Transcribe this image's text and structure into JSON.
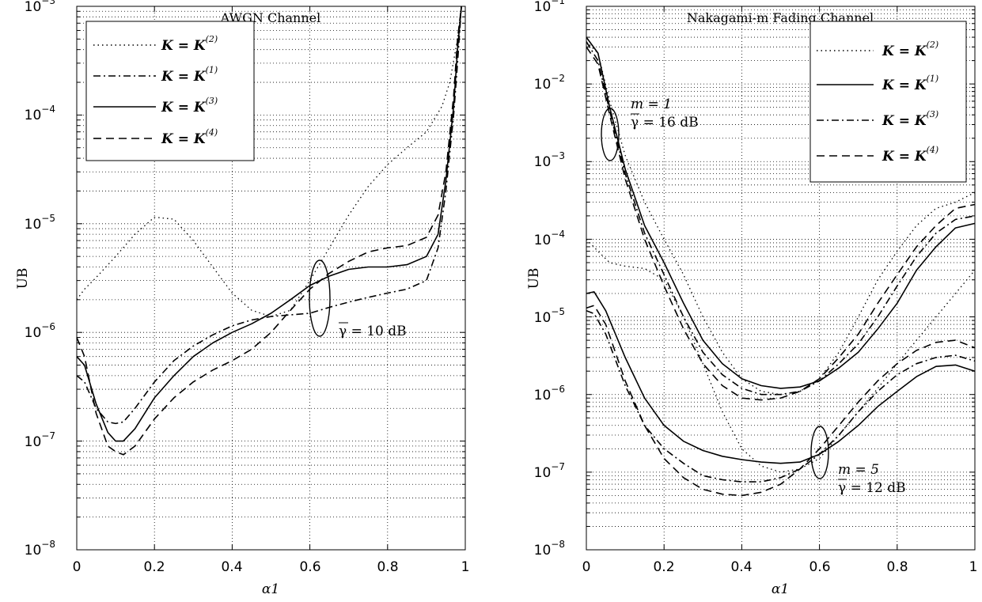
{
  "chart_data": [
    {
      "type": "line",
      "title": "AWGN Channel",
      "xlabel": "α1",
      "ylabel": "UB",
      "xlim": [
        0,
        1
      ],
      "ylim": [
        1e-08,
        0.001
      ],
      "yscale": "log",
      "grid": true,
      "legend_position": "top-left",
      "x_ticks": [
        "0",
        "0.2",
        "0.4",
        "0.6",
        "0.8",
        "1"
      ],
      "y_ticks": [
        {
          "base": "10",
          "exp": "−8"
        },
        {
          "base": "10",
          "exp": "−7"
        },
        {
          "base": "10",
          "exp": "−6"
        },
        {
          "base": "10",
          "exp": "−5"
        },
        {
          "base": "10",
          "exp": "−4"
        },
        {
          "base": "10",
          "exp": "−3"
        }
      ],
      "legend": [
        {
          "label": "K = K",
          "sup": "(2)",
          "style": "dotted"
        },
        {
          "label": "K = K",
          "sup": "(1)",
          "style": "dashdot"
        },
        {
          "label": "K = K",
          "sup": "(3)",
          "style": "solid"
        },
        {
          "label": "K = K",
          "sup": "(4)",
          "style": "dashed"
        }
      ],
      "annotations": [
        "γ = 10 dB"
      ],
      "series": [
        {
          "style": "dotted",
          "x": [
            0.0,
            0.02,
            0.05,
            0.1,
            0.15,
            0.2,
            0.25,
            0.3,
            0.35,
            0.4,
            0.45,
            0.5,
            0.55,
            0.6,
            0.65,
            0.7,
            0.75,
            0.8,
            0.85,
            0.9,
            0.94,
            0.96,
            0.98,
            0.99
          ],
          "y": [
            2e-06,
            2.5e-06,
            3.2e-06,
            5e-06,
            8e-06,
            1.15e-05,
            1.1e-05,
            7e-06,
            4e-06,
            2.3e-06,
            1.6e-06,
            1.4e-06,
            1.6e-06,
            3e-06,
            6e-06,
            1.2e-05,
            2.2e-05,
            3.5e-05,
            5e-05,
            7e-05,
            0.00012,
            0.0002,
            0.0005,
            0.001
          ]
        },
        {
          "style": "dashdot",
          "x": [
            0.0,
            0.02,
            0.05,
            0.08,
            0.1,
            0.12,
            0.15,
            0.2,
            0.25,
            0.3,
            0.35,
            0.4,
            0.45,
            0.5,
            0.55,
            0.6,
            0.65,
            0.7,
            0.75,
            0.8,
            0.85,
            0.9,
            0.93,
            0.95,
            0.97,
            0.98,
            0.99
          ],
          "y": [
            4e-07,
            3.5e-07,
            2e-07,
            1.5e-07,
            1.45e-07,
            1.5e-07,
            2e-07,
            3.5e-07,
            5.5e-07,
            7.5e-07,
            9.5e-07,
            1.15e-06,
            1.3e-06,
            1.4e-06,
            1.45e-06,
            1.5e-06,
            1.7e-06,
            1.9e-06,
            2.1e-06,
            2.3e-06,
            2.5e-06,
            3e-06,
            6e-06,
            2e-05,
            0.0001,
            0.0003,
            0.001
          ]
        },
        {
          "style": "solid",
          "x": [
            0.0,
            0.02,
            0.05,
            0.08,
            0.1,
            0.12,
            0.15,
            0.2,
            0.25,
            0.3,
            0.35,
            0.4,
            0.45,
            0.5,
            0.55,
            0.6,
            0.65,
            0.7,
            0.75,
            0.8,
            0.85,
            0.9,
            0.93,
            0.95,
            0.97,
            0.98,
            0.99
          ],
          "y": [
            6e-07,
            5e-07,
            2.2e-07,
            1.2e-07,
            1e-07,
            1e-07,
            1.3e-07,
            2.5e-07,
            4e-07,
            6e-07,
            8e-07,
            1e-06,
            1.2e-06,
            1.5e-06,
            2e-06,
            2.7e-06,
            3.3e-06,
            3.8e-06,
            4e-06,
            4e-06,
            4.2e-06,
            5e-06,
            8e-06,
            2.5e-05,
            0.00012,
            0.0004,
            0.001
          ]
        },
        {
          "style": "dashed",
          "x": [
            0.0,
            0.02,
            0.05,
            0.08,
            0.1,
            0.12,
            0.15,
            0.2,
            0.25,
            0.3,
            0.35,
            0.4,
            0.45,
            0.5,
            0.55,
            0.6,
            0.65,
            0.7,
            0.75,
            0.8,
            0.85,
            0.9,
            0.93,
            0.95,
            0.97,
            0.98,
            0.99
          ],
          "y": [
            9e-07,
            6e-07,
            1.8e-07,
            9e-08,
            8e-08,
            7.5e-08,
            9e-08,
            1.6e-07,
            2.5e-07,
            3.5e-07,
            4.5e-07,
            5.5e-07,
            7e-07,
            1e-06,
            1.6e-06,
            2.5e-06,
            3.5e-06,
            4.5e-06,
            5.5e-06,
            6e-06,
            6.3e-06,
            7.5e-06,
            1.2e-05,
            3e-05,
            0.00015,
            0.0005,
            0.001
          ]
        }
      ]
    },
    {
      "type": "line",
      "title": "Nakagami-m Fading Channel",
      "xlabel": "α1",
      "ylabel": "UB",
      "xlim": [
        0,
        1
      ],
      "ylim": [
        1e-08,
        0.1
      ],
      "yscale": "log",
      "grid": true,
      "legend_position": "top-right",
      "x_ticks": [
        "0",
        "0.2",
        "0.4",
        "0.6",
        "0.8",
        "1"
      ],
      "y_ticks": [
        {
          "base": "10",
          "exp": "−8"
        },
        {
          "base": "10",
          "exp": "−7"
        },
        {
          "base": "10",
          "exp": "−6"
        },
        {
          "base": "10",
          "exp": "−5"
        },
        {
          "base": "10",
          "exp": "−4"
        },
        {
          "base": "10",
          "exp": "−3"
        },
        {
          "base": "10",
          "exp": "−2"
        },
        {
          "base": "10",
          "exp": "−1"
        }
      ],
      "legend": [
        {
          "label": "K = K",
          "sup": "(2)",
          "style": "dotted"
        },
        {
          "label": "K = K",
          "sup": "(1)",
          "style": "solid"
        },
        {
          "label": "K = K",
          "sup": "(3)",
          "style": "dashdot"
        },
        {
          "label": "K = K",
          "sup": "(4)",
          "style": "dashed"
        }
      ],
      "annotations": [
        "m = 1",
        "γ = 16 dB",
        "m = 5",
        "γ = 12 dB"
      ],
      "series": [
        {
          "group": "m = 1",
          "style": "dotted",
          "x": [
            0.0,
            0.03,
            0.06,
            0.1,
            0.15,
            0.2,
            0.25,
            0.3,
            0.35,
            0.4,
            0.45,
            0.5,
            0.55,
            0.6,
            0.65,
            0.7,
            0.75,
            0.8,
            0.85,
            0.9,
            0.95,
            1.0
          ],
          "y": [
            0.035,
            0.025,
            0.006,
            0.0012,
            0.0003,
            0.0001,
            3.5e-05,
            1e-05,
            3.5e-06,
            1.6e-06,
            1.1e-06,
            1e-06,
            1.1e-06,
            1.6e-06,
            3.5e-06,
            1e-05,
            3e-05,
            7e-05,
            0.00015,
            0.00025,
            0.0003,
            0.0004
          ]
        },
        {
          "group": "m = 1",
          "style": "solid",
          "x": [
            0.0,
            0.03,
            0.06,
            0.1,
            0.15,
            0.2,
            0.25,
            0.3,
            0.35,
            0.4,
            0.45,
            0.5,
            0.55,
            0.6,
            0.65,
            0.7,
            0.75,
            0.8,
            0.85,
            0.9,
            0.95,
            1.0
          ],
          "y": [
            0.04,
            0.025,
            0.005,
            0.0008,
            0.00015,
            5e-05,
            1.5e-05,
            5e-06,
            2.5e-06,
            1.6e-06,
            1.3e-06,
            1.2e-06,
            1.25e-06,
            1.5e-06,
            2.2e-06,
            3.5e-06,
            7e-06,
            1.5e-05,
            4e-05,
            8e-05,
            0.00014,
            0.00016
          ]
        },
        {
          "group": "m = 1",
          "style": "dashdot",
          "x": [
            0.0,
            0.03,
            0.06,
            0.1,
            0.15,
            0.2,
            0.25,
            0.3,
            0.35,
            0.4,
            0.45,
            0.5,
            0.55,
            0.6,
            0.65,
            0.7,
            0.75,
            0.8,
            0.85,
            0.9,
            0.95,
            1.0
          ],
          "y": [
            0.035,
            0.02,
            0.0045,
            0.0007,
            0.00012,
            3.5e-05,
            1e-05,
            3.5e-06,
            1.8e-06,
            1.2e-06,
            1e-06,
            1e-06,
            1.1e-06,
            1.5e-06,
            2.5e-06,
            4.5e-06,
            1e-05,
            2.5e-05,
            6e-05,
            0.00012,
            0.00018,
            0.0002
          ]
        },
        {
          "group": "m = 1",
          "style": "dashed",
          "x": [
            0.0,
            0.03,
            0.06,
            0.1,
            0.15,
            0.2,
            0.25,
            0.3,
            0.35,
            0.4,
            0.45,
            0.5,
            0.55,
            0.6,
            0.65,
            0.7,
            0.75,
            0.8,
            0.85,
            0.9,
            0.95,
            1.0
          ],
          "y": [
            0.03,
            0.018,
            0.004,
            0.0006,
            0.0001,
            2.5e-05,
            7e-06,
            2.5e-06,
            1.3e-06,
            9e-07,
            8.5e-07,
            9e-07,
            1.1e-06,
            1.6e-06,
            3e-06,
            6e-06,
            1.5e-05,
            3.5e-05,
            8e-05,
            0.00015,
            0.00025,
            0.00028
          ]
        },
        {
          "group": "m = 5",
          "style": "dotted",
          "x": [
            0.0,
            0.03,
            0.06,
            0.1,
            0.15,
            0.2,
            0.25,
            0.3,
            0.35,
            0.4,
            0.45,
            0.5,
            0.55,
            0.6,
            0.65,
            0.7,
            0.75,
            0.8,
            0.85,
            0.9,
            0.95,
            1.0
          ],
          "y": [
            0.0001,
            7e-05,
            5e-05,
            4.5e-05,
            4.2e-05,
            3e-05,
            1e-05,
            2.5e-06,
            6e-07,
            2e-07,
            1.2e-07,
            1e-07,
            1.1e-07,
            1.5e-07,
            3e-07,
            6e-07,
            1.2e-06,
            2.5e-06,
            5e-06,
            1e-05,
            2e-05,
            4e-05
          ]
        },
        {
          "group": "m = 5",
          "style": "solid",
          "x": [
            0.0,
            0.02,
            0.05,
            0.1,
            0.15,
            0.2,
            0.25,
            0.3,
            0.35,
            0.4,
            0.45,
            0.5,
            0.55,
            0.6,
            0.65,
            0.7,
            0.75,
            0.8,
            0.85,
            0.9,
            0.95,
            1.0
          ],
          "y": [
            2e-05,
            2.1e-05,
            1.2e-05,
            3e-06,
            9e-07,
            4e-07,
            2.5e-07,
            1.9e-07,
            1.6e-07,
            1.45e-07,
            1.35e-07,
            1.3e-07,
            1.35e-07,
            1.7e-07,
            2.5e-07,
            4e-07,
            7e-07,
            1.1e-06,
            1.7e-06,
            2.3e-06,
            2.4e-06,
            2e-06
          ]
        },
        {
          "group": "m = 5",
          "style": "dashdot",
          "x": [
            0.0,
            0.02,
            0.05,
            0.1,
            0.15,
            0.2,
            0.25,
            0.3,
            0.35,
            0.4,
            0.45,
            0.5,
            0.55,
            0.6,
            0.65,
            0.7,
            0.75,
            0.8,
            0.85,
            0.9,
            0.95,
            1.0
          ],
          "y": [
            1.2e-05,
            1.1e-05,
            6e-06,
            1.3e-06,
            4e-07,
            2e-07,
            1.3e-07,
            9e-08,
            8e-08,
            7.5e-08,
            7.5e-08,
            8.5e-08,
            1.1e-07,
            1.7e-07,
            3e-07,
            6e-07,
            1.1e-06,
            1.8e-06,
            2.5e-06,
            3e-06,
            3.2e-06,
            2.7e-06
          ]
        },
        {
          "group": "m = 5",
          "style": "dashed",
          "x": [
            0.0,
            0.02,
            0.05,
            0.1,
            0.15,
            0.2,
            0.25,
            0.3,
            0.35,
            0.4,
            0.45,
            0.5,
            0.55,
            0.6,
            0.65,
            0.7,
            0.75,
            0.8,
            0.85,
            0.9,
            0.95,
            1.0
          ],
          "y": [
            1.3e-05,
            1.4e-05,
            8e-06,
            1.5e-06,
            4e-07,
            1.5e-07,
            8.5e-08,
            6e-08,
            5.2e-08,
            5e-08,
            5.5e-08,
            7e-08,
            1.1e-07,
            2e-07,
            4e-07,
            8e-07,
            1.5e-06,
            2.5e-06,
            3.7e-06,
            4.7e-06,
            5e-06,
            4e-06
          ]
        }
      ]
    }
  ]
}
